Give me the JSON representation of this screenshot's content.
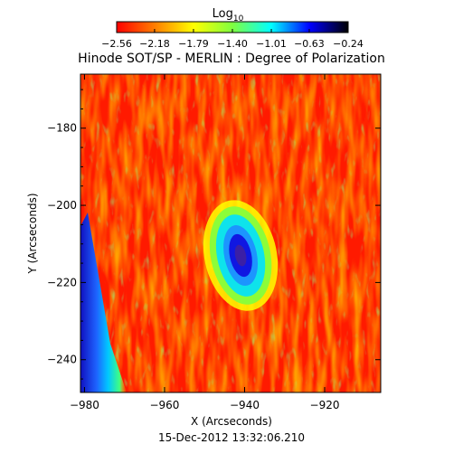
{
  "chart_data": {
    "type": "heatmap",
    "title": "Hinode SOT/SP - MERLIN : Degree of Polarization",
    "xlabel": "X (Arcseconds)",
    "ylabel": "Y (Arcseconds)",
    "xlim": [
      -981,
      -906
    ],
    "ylim": [
      -248.5,
      -166
    ],
    "x_ticks": [
      -980,
      -960,
      -940,
      -920
    ],
    "y_ticks": [
      -180,
      -200,
      -220,
      -240
    ],
    "x_tick_labels": [
      "−980",
      "−960",
      "−940",
      "−920"
    ],
    "y_tick_labels": [
      "−180",
      "−200",
      "−220",
      "−240"
    ],
    "timestamp": "15-Dec-2012 13:32:06.210",
    "colorbar": {
      "label": "Log",
      "label_subscript": "10",
      "scale": "log10",
      "range": [
        -2.56,
        -0.24
      ],
      "ticks": [
        -2.56,
        -2.18,
        -1.79,
        -1.4,
        -1.01,
        -0.63,
        -0.24
      ],
      "tick_labels": [
        "−2.56",
        "−2.18",
        "−1.79",
        "−1.40",
        "−1.01",
        "−0.63",
        "−0.24"
      ],
      "colormap": [
        "#ff0000",
        "#ff7f00",
        "#ffff00",
        "#7fff3f",
        "#00ffff",
        "#0000ff",
        "#000000"
      ]
    },
    "features": [
      {
        "type": "gradient-edge",
        "x": -979,
        "value": -0.6
      },
      {
        "type": "spot",
        "x": -941,
        "y": -213,
        "value": -0.8
      }
    ],
    "grid": false,
    "legend": "colorbar-top"
  }
}
